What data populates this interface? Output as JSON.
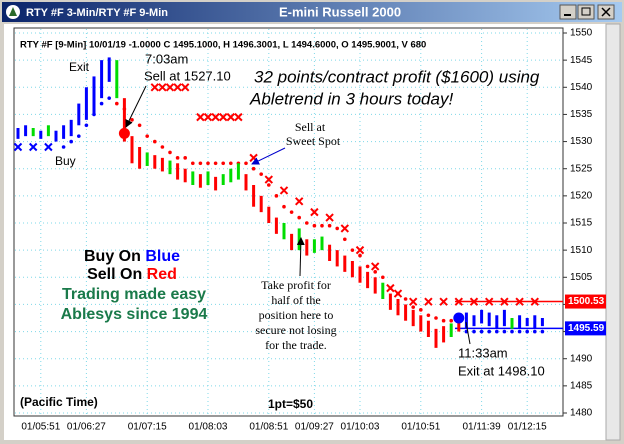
{
  "window": {
    "title": "RTY #F 3-Min/RTY #F 9-Min"
  },
  "chart_data": {
    "type": "hlbar",
    "title": "E-mini Russell 2000",
    "info": "RTY #F [9-Min] 10/01/19 -1.0000 C 1495.1000, H 1496.3001, L 1494.6000, O 1495.9001, V 680",
    "categories": [
      null,
      null,
      null,
      "01/05:51",
      null,
      null,
      null,
      null,
      null,
      "01/06:27",
      null,
      null,
      null,
      null,
      null,
      null,
      null,
      "01/07:15",
      null,
      null,
      null,
      null,
      null,
      null,
      null,
      "01/08:03",
      null,
      null,
      null,
      null,
      null,
      null,
      null,
      "01/08:51",
      null,
      null,
      null,
      null,
      null,
      "01/09:27",
      null,
      null,
      null,
      null,
      null,
      "01/10:03",
      null,
      null,
      null,
      null,
      null,
      null,
      null,
      "01/10:51",
      null,
      null,
      null,
      null,
      null,
      null,
      null,
      "01/11:39",
      null,
      null,
      null,
      null,
      null,
      "01/12:15",
      null,
      null
    ],
    "low": [
      1530.5,
      1531,
      1531,
      1530.5,
      1531,
      1530,
      1530.5,
      1531,
      1533,
      1534,
      1535,
      1538,
      1541,
      1538,
      1530,
      1526,
      1525,
      1525.5,
      1525,
      1524.5,
      1524,
      1523,
      1522.5,
      1522,
      1521.5,
      1522,
      1521,
      1522,
      1522.5,
      1523,
      1521,
      1518,
      1517,
      1515,
      1513,
      1512,
      1510,
      1510,
      1509,
      1509.5,
      1510,
      1508,
      1507,
      1506,
      1505,
      1504,
      1503,
      1502,
      1501,
      1499,
      1498,
      1497,
      1496,
      1495,
      1494,
      1492,
      1493,
      1494,
      1495,
      1495.5,
      1496,
      1496.5,
      1496,
      1495.5,
      1496,
      1495.5,
      1495.5,
      1496,
      1495.5,
      1496
    ],
    "high": [
      1532.5,
      1533,
      1532.5,
      1532,
      1533,
      1532,
      1533,
      1534,
      1537,
      1540,
      1542,
      1545,
      1545.5,
      1545,
      1538,
      1531,
      1529,
      1528,
      1527.5,
      1527,
      1526.5,
      1526,
      1525,
      1524.5,
      1524,
      1524.5,
      1523.5,
      1524,
      1525,
      1526,
      1524,
      1522,
      1520,
      1518,
      1516,
      1515,
      1513,
      1514,
      1512,
      1512,
      1512.5,
      1511,
      1510,
      1509,
      1508,
      1507,
      1506,
      1505,
      1504,
      1502,
      1501,
      1500,
      1499,
      1498,
      1497,
      1495.5,
      1496,
      1496.5,
      1497,
      1498.5,
      1498,
      1499,
      1498.5,
      1498,
      1499,
      1497.5,
      1498,
      1497.5,
      1498,
      1497.5
    ],
    "bar_colors": [
      "#0000ff",
      "#0000ff",
      "#00dd00",
      "#0000ff",
      "#00dd00",
      "#0000ff",
      "#0000ff",
      "#0000ff",
      "#0000ff",
      "#0000ff",
      "#0000ff",
      "#0000ff",
      "#0000ff",
      "#00dd00",
      "#ff0000",
      "#ff0000",
      "#ff0000",
      "#00dd00",
      "#ff0000",
      "#ff0000",
      "#00dd00",
      "#ff0000",
      "#ff0000",
      "#00dd00",
      "#ff0000",
      "#00dd00",
      "#ff0000",
      "#00dd00",
      "#00dd00",
      "#00dd00",
      "#ff0000",
      "#ff0000",
      "#ff0000",
      "#ff0000",
      "#ff0000",
      "#00dd00",
      "#ff0000",
      "#00dd00",
      "#ff0000",
      "#00dd00",
      "#00dd00",
      "#ff0000",
      "#ff0000",
      "#ff0000",
      "#ff0000",
      "#ff0000",
      "#ff0000",
      "#ff0000",
      "#00dd00",
      "#ff0000",
      "#ff0000",
      "#ff0000",
      "#ff0000",
      "#ff0000",
      "#ff0000",
      "#ff0000",
      "#ff0000",
      "#00dd00",
      "#ff0000",
      "#0000ff",
      "#0000ff",
      "#0000ff",
      "#0000ff",
      "#0000ff",
      "#0000ff",
      "#00dd00",
      "#0000ff",
      "#0000ff",
      "#0000ff",
      "#0000ff"
    ],
    "stop_dots": [
      {
        "color": "#ff0000",
        "values": [
          null,
          null,
          null,
          null,
          null,
          null,
          null,
          null,
          null,
          null,
          null,
          null,
          null,
          1537,
          1536,
          1534,
          1533,
          1531,
          1530,
          1529,
          1528,
          1527,
          1527,
          1526,
          1526,
          1526,
          1526,
          1526,
          1526,
          1526,
          1526,
          1525,
          1524,
          1522,
          1520,
          1518,
          1517,
          1516,
          1515,
          1514.5,
          1514.5,
          1514.5,
          1514,
          1512,
          1510,
          1509,
          1507,
          1506,
          1505,
          1503,
          1502,
          1501,
          1499.5,
          1499,
          1498,
          1497.5,
          1497,
          1497,
          1497,
          null,
          null,
          null,
          null,
          null,
          null,
          null,
          null,
          null,
          null,
          null
        ]
      },
      {
        "color": "#0000ff",
        "values": [
          null,
          null,
          null,
          null,
          null,
          null,
          1529,
          1530,
          1531,
          1533,
          1535,
          1537,
          1538,
          null,
          null,
          null,
          null,
          null,
          null,
          null,
          null,
          null,
          null,
          null,
          null,
          null,
          null,
          null,
          null,
          null,
          null,
          null,
          null,
          null,
          null,
          null,
          null,
          null,
          null,
          null,
          null,
          null,
          null,
          null,
          null,
          null,
          null,
          null,
          null,
          null,
          null,
          null,
          null,
          null,
          null,
          null,
          null,
          null,
          null,
          1495,
          1495,
          1495,
          1495,
          1495,
          1495,
          1495,
          1495,
          1495,
          1495,
          1495
        ]
      }
    ],
    "x_markers": [
      {
        "color": "#ff0000",
        "values": [
          null,
          null,
          null,
          null,
          null,
          null,
          null,
          null,
          null,
          null,
          null,
          null,
          null,
          null,
          null,
          null,
          null,
          null,
          1540,
          1540,
          1540,
          1540,
          1540,
          null,
          1534.5,
          1534.5,
          1534.5,
          1534.5,
          1534.5,
          1534.5,
          null,
          1527,
          null,
          1523,
          null,
          1521,
          null,
          1519,
          null,
          1517,
          null,
          1516,
          null,
          1514,
          null,
          1510,
          null,
          1507,
          null,
          1503,
          1502,
          null,
          1500.5,
          null,
          1500.5,
          null,
          1500.5,
          null,
          1500.5,
          null,
          1500.5,
          null,
          1500.5,
          null,
          1500.5,
          null,
          1500.5,
          null,
          1500.5,
          null
        ]
      },
      {
        "color": "#0000ff",
        "values": [
          1529,
          null,
          1529,
          null,
          1529,
          null,
          null,
          null,
          null,
          null,
          null,
          null,
          null,
          null,
          null,
          null,
          null,
          null,
          null,
          null,
          null,
          null,
          null,
          null,
          null,
          null,
          null,
          null,
          null,
          null,
          null,
          null,
          null,
          null,
          null,
          null,
          null,
          null,
          null,
          null,
          null,
          null,
          null,
          null,
          null,
          null,
          null,
          null,
          null,
          null,
          null,
          null,
          null,
          null,
          null,
          null,
          null,
          null,
          null,
          null,
          null,
          null,
          null,
          null,
          null,
          null,
          null,
          null,
          null,
          null
        ]
      }
    ],
    "signals": [
      {
        "color": "#ff0000",
        "values": [
          null,
          null,
          null,
          null,
          null,
          null,
          null,
          null,
          null,
          null,
          null,
          null,
          null,
          null,
          1531.5,
          null,
          null,
          null,
          null,
          null,
          null,
          null,
          null,
          null,
          null,
          null,
          null,
          null,
          null,
          null,
          null,
          null,
          null,
          null,
          null,
          null,
          null,
          null,
          null,
          null,
          null,
          null,
          null,
          null,
          null,
          null,
          null,
          null,
          null,
          null,
          null,
          null,
          null,
          null,
          null,
          null,
          null,
          null,
          null,
          null,
          null,
          null,
          null,
          null,
          null,
          null,
          null,
          null,
          null,
          null
        ]
      },
      {
        "color": "#0000ff",
        "values": [
          null,
          null,
          null,
          null,
          null,
          null,
          null,
          null,
          null,
          null,
          null,
          null,
          null,
          null,
          null,
          null,
          null,
          null,
          null,
          null,
          null,
          null,
          null,
          null,
          null,
          null,
          null,
          null,
          null,
          null,
          null,
          null,
          null,
          null,
          null,
          null,
          null,
          null,
          null,
          null,
          null,
          null,
          null,
          null,
          null,
          null,
          null,
          null,
          null,
          null,
          null,
          null,
          null,
          null,
          null,
          null,
          null,
          null,
          1497.5,
          null,
          null,
          null,
          null,
          null,
          null,
          null,
          null,
          null,
          null,
          null
        ]
      }
    ],
    "price_lines": [
      {
        "value": 1500.53,
        "color": "#ff0000"
      },
      {
        "value": 1495.59,
        "color": "#0000ff"
      }
    ],
    "ylim": [
      1480,
      1550
    ],
    "yticks": [
      1480,
      1485,
      1490,
      1495,
      1500,
      1505,
      1510,
      1515,
      1520,
      1525,
      1530,
      1535,
      1540,
      1545,
      1550
    ],
    "grid": true,
    "annotations": {
      "exit": "Exit",
      "buy": "Buy",
      "time_sell": "7:03am",
      "sell_price": "Sell at 1527.10",
      "profit_1": "32 points/contract profit ($1600) using",
      "profit_2": "Abletrend in 3 hours today!",
      "sweet_1": "Sell at",
      "sweet_2": "Sweet Spot",
      "buy_on": "Buy On",
      "blue": "Blue",
      "sell_on": "Sell On",
      "red": "Red",
      "easy": "Trading made easy",
      "since": "Ablesys since 1994",
      "take_1": "Take profit for",
      "take_2": "half of the",
      "take_3": "position here  to",
      "take_4": "secure not losing",
      "take_5": "for the trade.",
      "time_exit": "11:33am",
      "exit_price": "Exit at 1498.10",
      "tz": "(Pacific Time)",
      "point": "1pt=$50"
    }
  }
}
